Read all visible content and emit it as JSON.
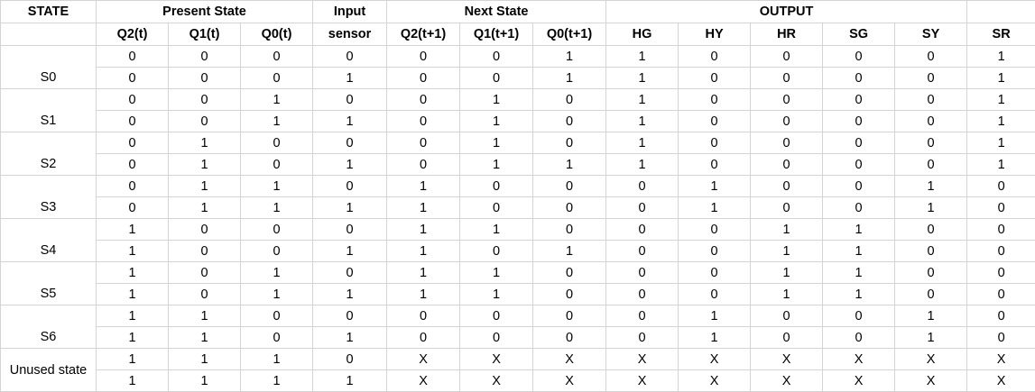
{
  "header_top": {
    "state": "STATE",
    "present_state": "Present State",
    "input": "Input",
    "next_state": "Next State",
    "output": "OUTPUT"
  },
  "header_sub": [
    "Q2(t)",
    "Q1(t)",
    "Q0(t)",
    "sensor",
    "Q2(t+1)",
    "Q1(t+1)",
    "Q0(t+1)",
    "HG",
    "HY",
    "HR",
    "SG",
    "SY",
    "SR"
  ],
  "states": [
    "S0",
    "S1",
    "S2",
    "S3",
    "S4",
    "S5",
    "S6",
    "Unused state"
  ],
  "rows": [
    [
      "0",
      "0",
      "0",
      "0",
      "0",
      "0",
      "1",
      "1",
      "0",
      "0",
      "0",
      "0",
      "1"
    ],
    [
      "0",
      "0",
      "0",
      "1",
      "0",
      "0",
      "1",
      "1",
      "0",
      "0",
      "0",
      "0",
      "1"
    ],
    [
      "0",
      "0",
      "1",
      "0",
      "0",
      "1",
      "0",
      "1",
      "0",
      "0",
      "0",
      "0",
      "1"
    ],
    [
      "0",
      "0",
      "1",
      "1",
      "0",
      "1",
      "0",
      "1",
      "0",
      "0",
      "0",
      "0",
      "1"
    ],
    [
      "0",
      "1",
      "0",
      "0",
      "0",
      "1",
      "0",
      "1",
      "0",
      "0",
      "0",
      "0",
      "1"
    ],
    [
      "0",
      "1",
      "0",
      "1",
      "0",
      "1",
      "1",
      "1",
      "0",
      "0",
      "0",
      "0",
      "1"
    ],
    [
      "0",
      "1",
      "1",
      "0",
      "1",
      "0",
      "0",
      "0",
      "1",
      "0",
      "0",
      "1",
      "0"
    ],
    [
      "0",
      "1",
      "1",
      "1",
      "1",
      "0",
      "0",
      "0",
      "1",
      "0",
      "0",
      "1",
      "0"
    ],
    [
      "1",
      "0",
      "0",
      "0",
      "1",
      "1",
      "0",
      "0",
      "0",
      "1",
      "1",
      "0",
      "0"
    ],
    [
      "1",
      "0",
      "0",
      "1",
      "1",
      "0",
      "1",
      "0",
      "0",
      "1",
      "1",
      "0",
      "0"
    ],
    [
      "1",
      "0",
      "1",
      "0",
      "1",
      "1",
      "0",
      "0",
      "0",
      "1",
      "1",
      "0",
      "0"
    ],
    [
      "1",
      "0",
      "1",
      "1",
      "1",
      "1",
      "0",
      "0",
      "0",
      "1",
      "1",
      "0",
      "0"
    ],
    [
      "1",
      "1",
      "0",
      "0",
      "0",
      "0",
      "0",
      "0",
      "1",
      "0",
      "0",
      "1",
      "0"
    ],
    [
      "1",
      "1",
      "0",
      "1",
      "0",
      "0",
      "0",
      "0",
      "1",
      "0",
      "0",
      "1",
      "0"
    ],
    [
      "1",
      "1",
      "1",
      "0",
      "X",
      "X",
      "X",
      "X",
      "X",
      "X",
      "X",
      "X",
      "X"
    ],
    [
      "1",
      "1",
      "1",
      "1",
      "X",
      "X",
      "X",
      "X",
      "X",
      "X",
      "X",
      "X",
      "X"
    ]
  ]
}
